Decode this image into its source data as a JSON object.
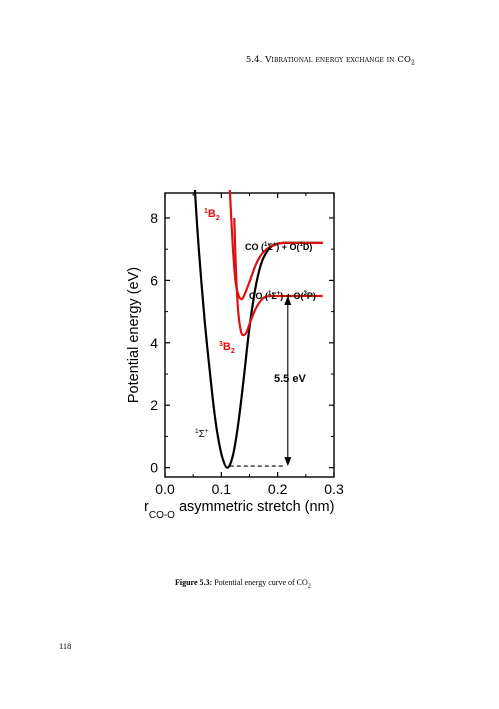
{
  "running_head": {
    "section": "5.4.",
    "title": "Vibrational energy exchange in",
    "molecule": "CO",
    "molecule_sub": "2"
  },
  "figure": {
    "ylabel": "Potential energy (eV)",
    "xlabel_prefix": "r",
    "xlabel_sub": "CO-O",
    "xlabel_suffix": " asymmetric stretch (nm)",
    "x_ticks": [
      "0.0",
      "0.1",
      "0.2",
      "0.3"
    ],
    "y_ticks": [
      "0",
      "2",
      "4",
      "6",
      "8"
    ],
    "state_labels": {
      "b2_singlet": {
        "sup": "1",
        "base": "B",
        "sub": "2"
      },
      "b2_triplet": {
        "sup": "3",
        "base": "B",
        "sub": "2"
      },
      "ground": {
        "sup": "1",
        "base": "Σ",
        "plus": "+"
      }
    },
    "asymptote_upper": {
      "prefix": "CO (",
      "sup1": "1",
      "sigma": "Σ",
      "plus": "+",
      "mid": ") + O(",
      "sup2": "1",
      "term": "D",
      "end": ")"
    },
    "asymptote_lower": {
      "prefix": "CO (",
      "sup1": "1",
      "sigma": "Σ",
      "plus": "+",
      "mid": ") + O(",
      "sup2": "3",
      "term": "P",
      "end": ")"
    },
    "energy_annotation": "5.5 eV",
    "colors": {
      "ground_curve": "#000000",
      "excited_curves": "#dd1111"
    }
  },
  "chart_data": {
    "type": "line",
    "title": "",
    "xlabel": "r_CO-O asymmetric stretch (nm)",
    "ylabel": "Potential energy (eV)",
    "xlim": [
      0.0,
      0.3
    ],
    "ylim": [
      -0.3,
      8.8
    ],
    "grid": false,
    "series": [
      {
        "name": "1Σ+",
        "color": "#000000",
        "x": [
          0.053,
          0.06,
          0.07,
          0.08,
          0.09,
          0.1,
          0.11,
          0.12,
          0.13,
          0.14,
          0.15,
          0.16,
          0.17,
          0.18,
          0.19,
          0.2,
          0.21,
          0.22,
          0.24,
          0.26,
          0.28
        ],
        "y": [
          8.9,
          7.0,
          4.8,
          3.0,
          1.45,
          0.45,
          0.0,
          0.35,
          1.4,
          2.9,
          4.5,
          5.7,
          6.5,
          6.9,
          7.1,
          7.18,
          7.2,
          7.2,
          7.2,
          7.2,
          7.2
        ]
      },
      {
        "name": "1B2",
        "color": "#dd1111",
        "x": [
          0.115,
          0.12,
          0.125,
          0.13,
          0.135,
          0.14,
          0.15,
          0.16,
          0.17,
          0.18,
          0.19,
          0.2,
          0.21,
          0.22,
          0.24,
          0.26,
          0.28
        ],
        "y": [
          8.9,
          7.2,
          6.0,
          5.55,
          5.4,
          5.5,
          5.95,
          6.45,
          6.8,
          7.0,
          7.1,
          7.17,
          7.2,
          7.2,
          7.2,
          7.2,
          7.2
        ]
      },
      {
        "name": "3B2",
        "color": "#dd1111",
        "x": [
          0.123,
          0.126,
          0.13,
          0.135,
          0.14,
          0.145,
          0.15,
          0.16,
          0.17,
          0.18,
          0.2,
          0.22,
          0.24,
          0.26,
          0.28
        ],
        "y": [
          8.0,
          6.3,
          5.0,
          4.35,
          4.25,
          4.35,
          4.6,
          5.05,
          5.35,
          5.48,
          5.5,
          5.5,
          5.5,
          5.5,
          5.5
        ]
      }
    ],
    "annotations": [
      {
        "text": "5.5 eV",
        "x": 0.218,
        "y_from": 0.05,
        "y_to": 5.5
      }
    ]
  },
  "caption": {
    "label": "Figure 5.3:",
    "text": " Potential energy curve of CO",
    "sub": "2"
  },
  "page_number": "118"
}
